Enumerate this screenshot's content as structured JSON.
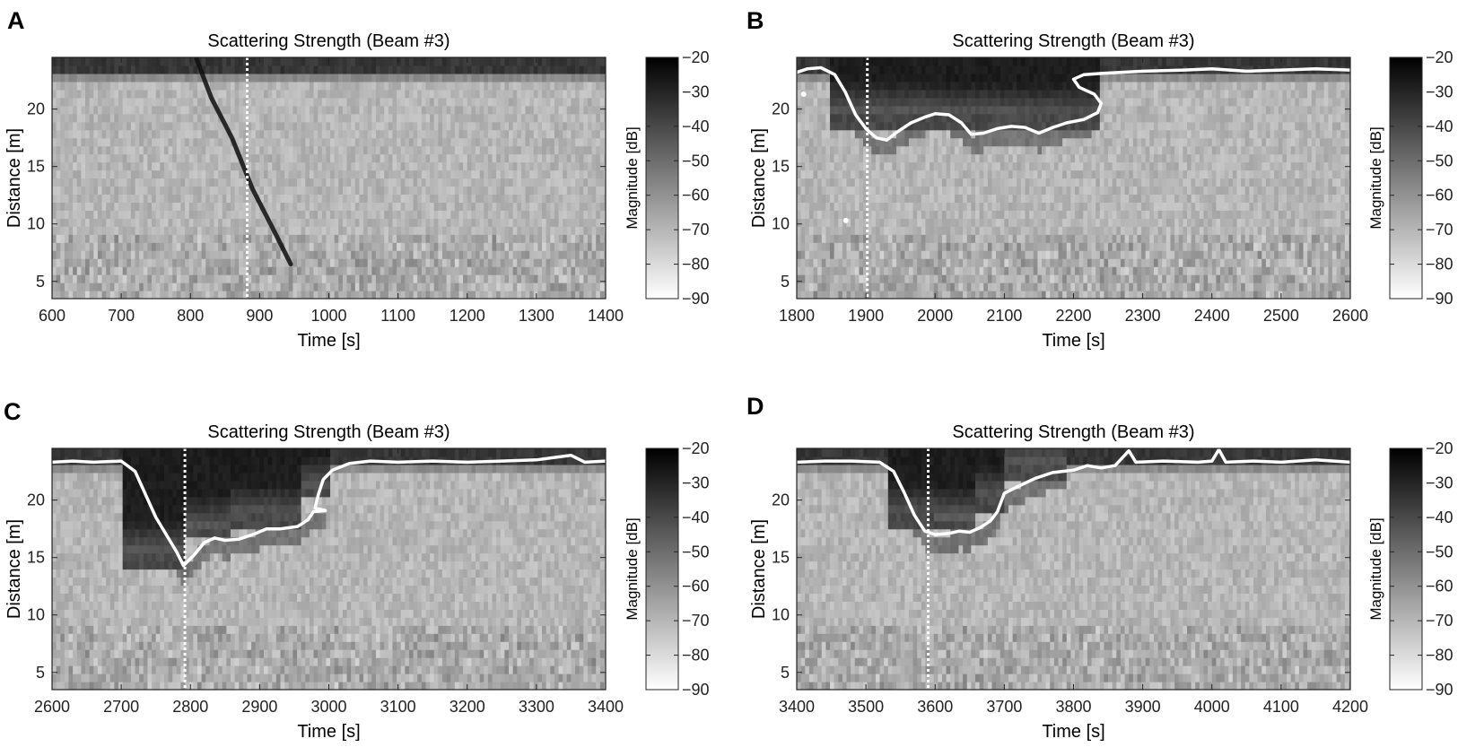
{
  "chart_data": [
    {
      "panel": "A",
      "type": "heatmap",
      "title": "Scattering Strength (Beam #3)",
      "xlabel": "Time [s]",
      "ylabel": "Distance [m]",
      "xlim": [
        600,
        1400
      ],
      "ylim": [
        3.5,
        24.5
      ],
      "xticks": [
        600,
        700,
        800,
        900,
        1000,
        1100,
        1200,
        1300,
        1400
      ],
      "yticks": [
        5,
        10,
        15,
        20
      ],
      "colorbar": {
        "label": "Magnitude [dB]",
        "range": [
          -90,
          -20
        ],
        "ticks": [
          -20,
          -30,
          -40,
          -50,
          -60,
          -70,
          -80,
          -90
        ],
        "colormap": "gray (white = -90, black = -20)"
      },
      "vertical_marker_time": 882,
      "feature": "descending dark streak",
      "streak": [
        [
          808,
          24.5
        ],
        [
          830,
          21
        ],
        [
          860,
          17.5
        ],
        [
          890,
          13
        ],
        [
          920,
          9.5
        ],
        [
          945,
          6.5
        ]
      ],
      "boundary_line": []
    },
    {
      "panel": "B",
      "type": "heatmap",
      "title": "Scattering Strength (Beam #3)",
      "xlabel": "Time [s]",
      "ylabel": "Distance [m]",
      "xlim": [
        1800,
        2600
      ],
      "ylim": [
        3.5,
        24.5
      ],
      "xticks": [
        1800,
        1900,
        2000,
        2100,
        2200,
        2300,
        2400,
        2500,
        2600
      ],
      "yticks": [
        5,
        10,
        15,
        20
      ],
      "colorbar": {
        "label": "Magnitude [dB]",
        "range": [
          -90,
          -20
        ],
        "ticks": [
          -20,
          -30,
          -40,
          -50,
          -60,
          -70,
          -80,
          -90
        ],
        "colormap": "gray (white = -90, black = -20)"
      },
      "vertical_marker_time": 1902,
      "feature": "dark plume region enclosed by white boundary line",
      "boundary_line": [
        [
          1800,
          23.2
        ],
        [
          1815,
          23.5
        ],
        [
          1835,
          23.6
        ],
        [
          1855,
          23.0
        ],
        [
          1870,
          21.5
        ],
        [
          1885,
          19.5
        ],
        [
          1900,
          18.3
        ],
        [
          1915,
          17.5
        ],
        [
          1930,
          17.3
        ],
        [
          1945,
          18.0
        ],
        [
          1965,
          18.8
        ],
        [
          1985,
          19.3
        ],
        [
          2000,
          19.6
        ],
        [
          2020,
          19.5
        ],
        [
          2038,
          18.8
        ],
        [
          2052,
          17.8
        ],
        [
          2070,
          17.9
        ],
        [
          2090,
          18.3
        ],
        [
          2110,
          18.5
        ],
        [
          2130,
          18.4
        ],
        [
          2150,
          17.9
        ],
        [
          2170,
          18.4
        ],
        [
          2190,
          18.8
        ],
        [
          2215,
          19.1
        ],
        [
          2235,
          19.7
        ],
        [
          2240,
          20.5
        ],
        [
          2230,
          21.3
        ],
        [
          2208,
          21.9
        ],
        [
          2200,
          22.6
        ],
        [
          2215,
          23.0
        ],
        [
          2240,
          23.1
        ],
        [
          2300,
          23.3
        ],
        [
          2360,
          23.4
        ],
        [
          2400,
          23.5
        ],
        [
          2450,
          23.3
        ],
        [
          2500,
          23.4
        ],
        [
          2550,
          23.5
        ],
        [
          2600,
          23.4
        ]
      ],
      "dark_columns": [
        [
          1850,
          2000,
          24.5,
          18.5
        ],
        [
          2000,
          2120,
          24.5,
          18.3
        ],
        [
          2120,
          2240,
          24.5,
          18.2
        ]
      ],
      "points": [
        [
          1810,
          21.3
        ],
        [
          1871,
          10.3
        ]
      ]
    },
    {
      "panel": "C",
      "type": "heatmap",
      "title": "Scattering Strength (Beam #3)",
      "xlabel": "Time [s]",
      "ylabel": "Distance [m]",
      "xlim": [
        2600,
        3400
      ],
      "ylim": [
        3.5,
        24.5
      ],
      "xticks": [
        2600,
        2700,
        2800,
        2900,
        3000,
        3100,
        3200,
        3300,
        3400
      ],
      "yticks": [
        5,
        10,
        15,
        20
      ],
      "colorbar": {
        "label": "Magnitude [dB]",
        "range": [
          -90,
          -20
        ],
        "ticks": [
          -20,
          -30,
          -40,
          -50,
          -60,
          -70,
          -80,
          -90
        ],
        "colormap": "gray (white = -90, black = -20)"
      },
      "vertical_marker_time": 2792,
      "feature": "dark plume region enclosed by white boundary line",
      "boundary_line": [
        [
          2600,
          23.3
        ],
        [
          2630,
          23.4
        ],
        [
          2660,
          23.3
        ],
        [
          2700,
          23.4
        ],
        [
          2720,
          22.5
        ],
        [
          2735,
          20.5
        ],
        [
          2750,
          18.5
        ],
        [
          2765,
          17.0
        ],
        [
          2780,
          15.5
        ],
        [
          2790,
          14.3
        ],
        [
          2805,
          15.2
        ],
        [
          2820,
          16.3
        ],
        [
          2835,
          16.7
        ],
        [
          2850,
          16.5
        ],
        [
          2870,
          16.6
        ],
        [
          2890,
          17.0
        ],
        [
          2910,
          17.5
        ],
        [
          2930,
          17.5
        ],
        [
          2955,
          17.7
        ],
        [
          2970,
          18.3
        ],
        [
          2978,
          19.0
        ],
        [
          2995,
          19.1
        ],
        [
          2980,
          19.3
        ],
        [
          2985,
          20.5
        ],
        [
          2992,
          21.8
        ],
        [
          3005,
          22.6
        ],
        [
          3030,
          23.2
        ],
        [
          3060,
          23.4
        ],
        [
          3100,
          23.3
        ],
        [
          3150,
          23.4
        ],
        [
          3200,
          23.3
        ],
        [
          3250,
          23.4
        ],
        [
          3300,
          23.5
        ],
        [
          3350,
          23.9
        ],
        [
          3370,
          23.3
        ],
        [
          3400,
          23.4
        ]
      ],
      "dark_columns": [
        [
          2700,
          2790,
          24.5,
          14.3
        ],
        [
          2790,
          2860,
          24.5,
          16.5
        ],
        [
          2860,
          2960,
          24.5,
          17.5
        ],
        [
          2960,
          3000,
          24.5,
          20.0
        ]
      ]
    },
    {
      "panel": "D",
      "type": "heatmap",
      "title": "Scattering Strength (Beam #3)",
      "xlabel": "Time [s]",
      "ylabel": "Distance [m]",
      "xlim": [
        3400,
        4200
      ],
      "ylim": [
        3.5,
        24.5
      ],
      "xticks": [
        3400,
        3500,
        3600,
        3700,
        3800,
        3900,
        4000,
        4100,
        4200
      ],
      "yticks": [
        5,
        10,
        15,
        20
      ],
      "colorbar": {
        "label": "Magnitude [dB]",
        "range": [
          -90,
          -20
        ],
        "ticks": [
          -20,
          -30,
          -40,
          -50,
          -60,
          -70,
          -80,
          -90
        ],
        "colormap": "gray (white = -90, black = -20)"
      },
      "vertical_marker_time": 3590,
      "feature": "dark plume region enclosed by white boundary line",
      "boundary_line": [
        [
          3400,
          23.3
        ],
        [
          3440,
          23.4
        ],
        [
          3480,
          23.4
        ],
        [
          3520,
          23.3
        ],
        [
          3540,
          22.5
        ],
        [
          3555,
          20.7
        ],
        [
          3570,
          18.7
        ],
        [
          3585,
          17.3
        ],
        [
          3600,
          17.0
        ],
        [
          3620,
          17.1
        ],
        [
          3635,
          17.3
        ],
        [
          3650,
          17.2
        ],
        [
          3665,
          17.6
        ],
        [
          3680,
          18.2
        ],
        [
          3690,
          19.0
        ],
        [
          3700,
          20.6
        ],
        [
          3720,
          21.2
        ],
        [
          3745,
          21.9
        ],
        [
          3770,
          22.4
        ],
        [
          3800,
          22.6
        ],
        [
          3820,
          23.0
        ],
        [
          3840,
          22.8
        ],
        [
          3860,
          23.0
        ],
        [
          3880,
          24.3
        ],
        [
          3890,
          23.3
        ],
        [
          3930,
          23.4
        ],
        [
          3980,
          23.3
        ],
        [
          4000,
          23.4
        ],
        [
          4010,
          24.4
        ],
        [
          4020,
          23.3
        ],
        [
          4060,
          23.4
        ],
        [
          4100,
          23.3
        ],
        [
          4150,
          23.5
        ],
        [
          4200,
          23.3
        ]
      ],
      "dark_columns": [
        [
          3530,
          3600,
          24.5,
          17.5
        ],
        [
          3600,
          3660,
          24.5,
          17.3
        ],
        [
          3660,
          3700,
          24.5,
          19.0
        ],
        [
          3700,
          3790,
          24.5,
          22.0
        ]
      ]
    }
  ]
}
